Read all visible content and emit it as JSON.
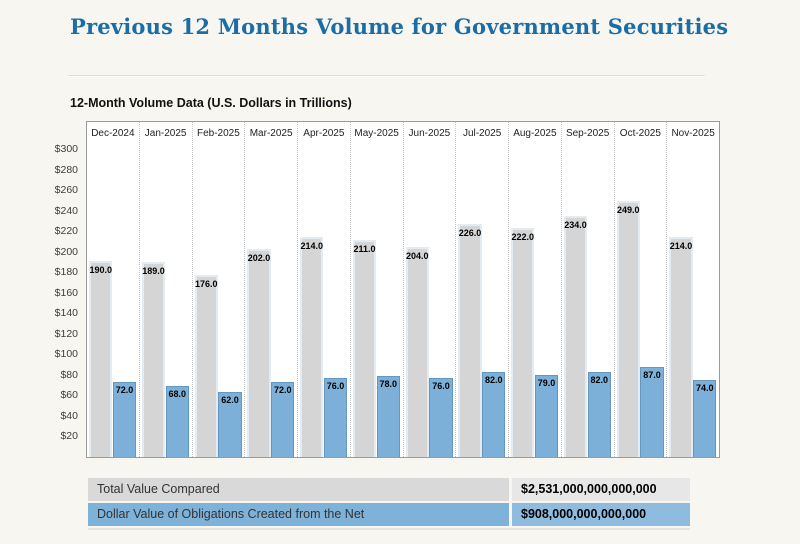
{
  "header": {
    "title": "Previous 12 Months Volume for Government Securities"
  },
  "chart": {
    "subtitle": "12-Month Volume Data (U.S. Dollars in Trillions)"
  },
  "chart_data": {
    "type": "bar",
    "title": "12-Month Volume Data (U.S. Dollars in Trillions)",
    "categories": [
      "Dec-2024",
      "Jan-2025",
      "Feb-2025",
      "Mar-2025",
      "Apr-2025",
      "May-2025",
      "Jun-2025",
      "Jul-2025",
      "Aug-2025",
      "Sep-2025",
      "Oct-2025",
      "Nov-2025"
    ],
    "series": [
      {
        "name": "Total Value Compared",
        "color": "#d5d5d5",
        "values": [
          190.0,
          189.0,
          176.0,
          202.0,
          214.0,
          211.0,
          204.0,
          226.0,
          222.0,
          234.0,
          249.0,
          214.0
        ]
      },
      {
        "name": "Dollar Value of Obligations Created from the Net",
        "color": "#7db0d8",
        "values": [
          72.0,
          68.0,
          62.0,
          72.0,
          76.0,
          78.0,
          76.0,
          82.0,
          79.0,
          82.0,
          87.0,
          74.0
        ]
      }
    ],
    "y_ticks": [
      "$300",
      "$280",
      "$260",
      "$240",
      "$220",
      "$200",
      "$180",
      "$160",
      "$140",
      "$120",
      "$100",
      "$80",
      "$60",
      "$40",
      "$20"
    ],
    "ylim": [
      0,
      326
    ],
    "xlabel": "",
    "ylabel": "U.S. Dollars in Trillions",
    "grid": "vertical-dotted-column-separators",
    "legend": "none",
    "value_labels": "shown-at-top-inside-bars-one-decimal"
  },
  "summary_table": {
    "rows": [
      {
        "label": "Total Value Compared",
        "value": "$2,531,000,000,000,000",
        "label_bg": "#d9d9d9",
        "value_bg": "#e7e7e7"
      },
      {
        "label": "Dollar Value of Obligations Created from the Net",
        "value": "$908,000,000,000,000",
        "label_bg": "#7fb2d9",
        "value_bg": "#8ebbde"
      }
    ]
  },
  "colors": {
    "page_background": "#f8f6f0",
    "title_text": "#1b6da6",
    "plot_background": "#ffffff",
    "plot_border": "#9a9a9a",
    "total_bar": "#d5d5d5",
    "obligations_bar": "#7db0d8"
  }
}
